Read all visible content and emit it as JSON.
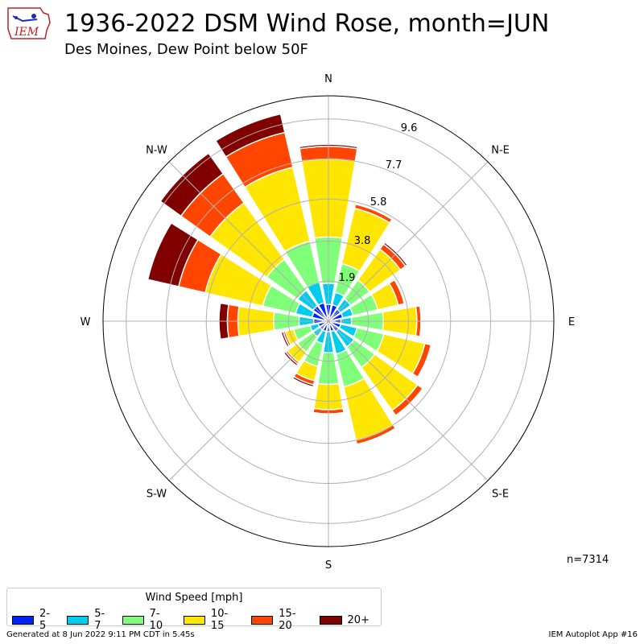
{
  "header": {
    "title": "1936-2022 DSM Wind Rose, month=JUN",
    "subtitle": "Des Moines, Dew Point below 50F",
    "logo_text": "IEM"
  },
  "count_label": "n=7314",
  "legend": {
    "title": "Wind Speed [mph]",
    "items": [
      {
        "label": "2-5",
        "color": "#0022ff"
      },
      {
        "label": "5-7",
        "color": "#00ccee"
      },
      {
        "label": "7-10",
        "color": "#7ffe7a"
      },
      {
        "label": "10-15",
        "color": "#ffe600"
      },
      {
        "label": "15-20",
        "color": "#ff4500"
      },
      {
        "label": "20+",
        "color": "#800000"
      }
    ]
  },
  "footer": {
    "generated": "Generated at 8 Jun 2022 9:11 PM CDT in 5.45s",
    "app": "IEM Autoplot App #16"
  },
  "chart_data": {
    "type": "windrose",
    "radial_unit": "percent",
    "rmax": 10.7,
    "rticks": [
      1.9,
      3.8,
      5.8,
      7.7,
      9.6
    ],
    "direction_labels": [
      "N",
      "N-E",
      "E",
      "S-E",
      "S",
      "S-W",
      "W",
      "N-W"
    ],
    "speed_bins": [
      "2-5",
      "5-7",
      "7-10",
      "10-15",
      "15-20",
      "20+"
    ],
    "directions": [
      0,
      22.5,
      45,
      67.5,
      90,
      112.5,
      135,
      157.5,
      180,
      202.5,
      225,
      247.5,
      270,
      292.5,
      315,
      337.5
    ],
    "series": [
      {
        "name": "2-5",
        "values": [
          0.8,
          0.8,
          0.7,
          0.7,
          0.6,
          0.6,
          0.6,
          0.5,
          0.5,
          0.5,
          0.5,
          0.5,
          0.7,
          0.8,
          0.9,
          0.9
        ]
      },
      {
        "name": "5-7",
        "values": [
          1.8,
          1.4,
          1.3,
          1.2,
          1.1,
          1.4,
          1.5,
          1.6,
          1.5,
          1.1,
          0.9,
          0.9,
          1.4,
          1.6,
          1.8,
          1.9
        ]
      },
      {
        "name": "7-10",
        "values": [
          4.0,
          2.8,
          2.4,
          2.4,
          2.6,
          2.7,
          2.7,
          3.2,
          3.0,
          2.2,
          1.8,
          1.7,
          2.6,
          3.2,
          3.6,
          3.9
        ]
      },
      {
        "name": "10-15",
        "values": [
          7.7,
          5.5,
          4.2,
          3.4,
          4.2,
          4.7,
          5.2,
          5.8,
          4.2,
          2.9,
          2.4,
          2.1,
          4.3,
          6.0,
          6.9,
          7.5
        ]
      },
      {
        "name": "15-20",
        "values": [
          8.3,
          5.7,
          4.5,
          3.7,
          4.4,
          5.0,
          5.5,
          6.0,
          4.4,
          3.1,
          2.5,
          2.2,
          4.8,
          7.3,
          8.6,
          9.2
        ]
      },
      {
        "name": "20+",
        "values": [
          8.4,
          5.7,
          4.6,
          3.7,
          4.4,
          5.0,
          5.5,
          6.0,
          4.4,
          3.2,
          2.6,
          2.3,
          5.2,
          8.8,
          9.8,
          10.1
        ]
      }
    ],
    "series_are_cumulative": true
  }
}
